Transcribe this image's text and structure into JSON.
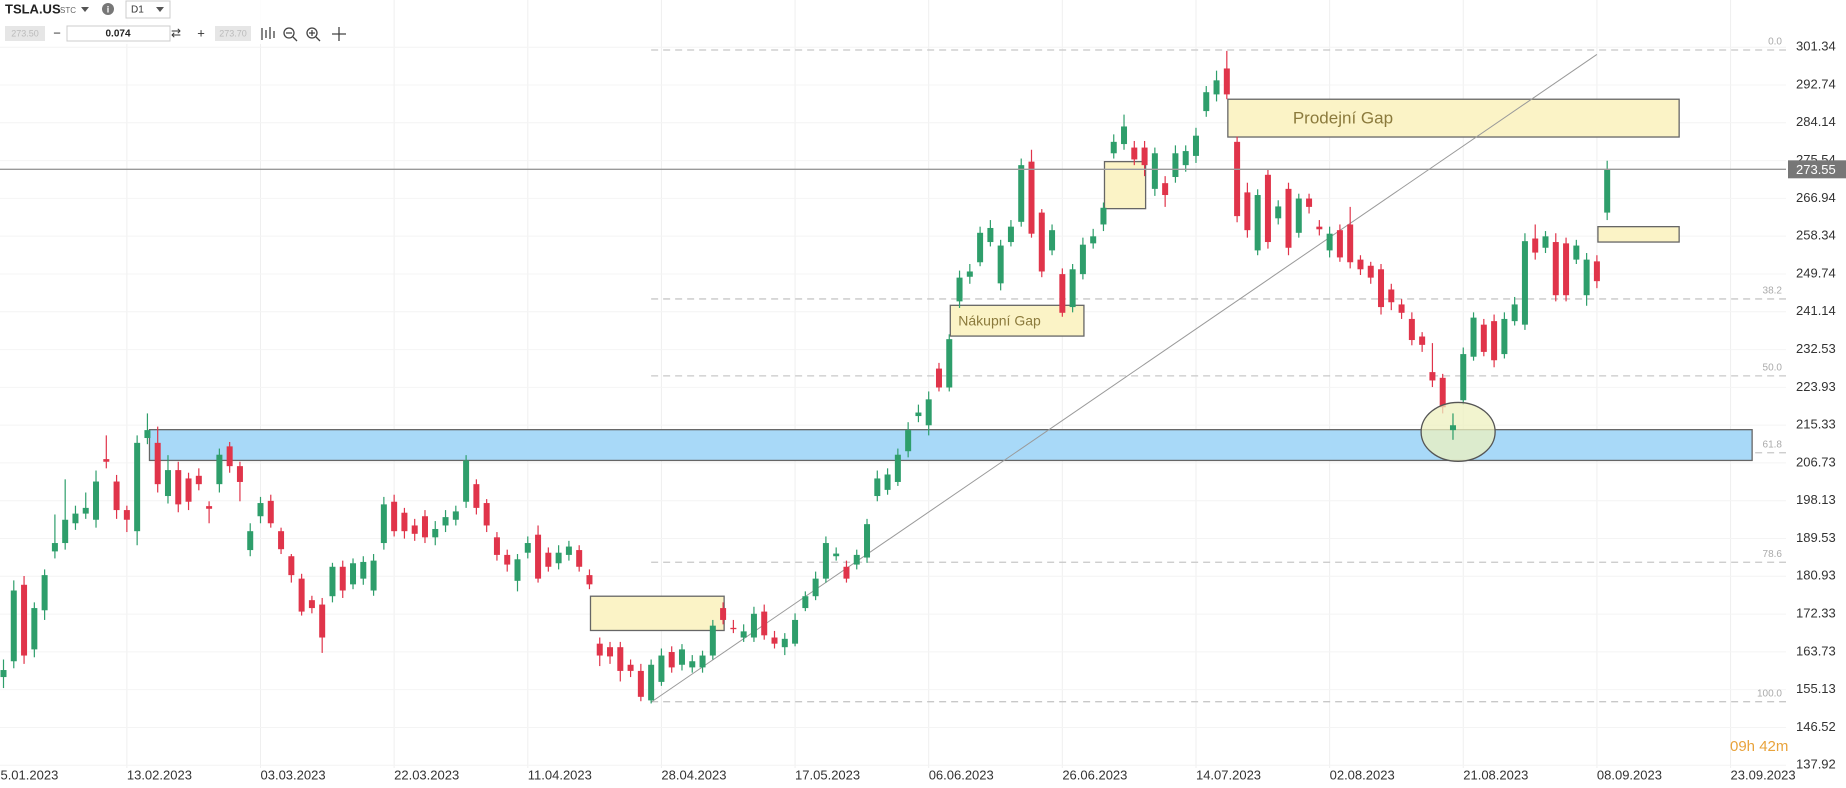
{
  "chart_data": {
    "type": "candlestick",
    "symbol": "TSLA.US",
    "symbol_type": "STC",
    "timeframe": "D1",
    "bid": "273.50",
    "volume": "0.074",
    "ask": "273.70",
    "current_price": 273.55,
    "countdown": "09h 42m",
    "up_color": "#2e9e6b",
    "down_color": "#e0344a",
    "grid": true,
    "ylim": [
      137.92,
      301.34
    ],
    "yticks": [
      301.34,
      292.74,
      284.14,
      275.54,
      266.94,
      258.34,
      249.74,
      241.14,
      232.53,
      223.93,
      215.33,
      206.73,
      198.13,
      189.53,
      180.93,
      172.33,
      163.73,
      155.13,
      146.52,
      137.92
    ],
    "xticks": [
      {
        "value": -1,
        "label": "25.01.2023"
      },
      {
        "value": 12,
        "label": "13.02.2023"
      },
      {
        "value": 25,
        "label": "03.03.2023"
      },
      {
        "value": 38,
        "label": "22.03.2023"
      },
      {
        "value": 51,
        "label": "11.04.2023"
      },
      {
        "value": 64,
        "label": "28.04.2023"
      },
      {
        "value": 77,
        "label": "17.05.2023"
      },
      {
        "value": 90,
        "label": "06.06.2023"
      },
      {
        "value": 103,
        "label": "26.06.2023"
      },
      {
        "value": 116,
        "label": "14.07.2023"
      },
      {
        "value": 129,
        "label": "02.08.2023"
      },
      {
        "value": 142,
        "label": "21.08.2023"
      },
      {
        "value": 155,
        "label": "08.09.2023"
      },
      {
        "value": 168,
        "label": "23.09.2023"
      }
    ],
    "open": [
      158.0,
      161.6,
      179.0,
      164.3,
      173.2,
      186.6,
      188.5,
      193.0,
      195.2,
      193.8,
      207.6,
      202.5,
      196.0,
      191.2,
      212.4,
      211.3,
      199.2,
      205.1,
      203.2,
      203.8,
      196.9,
      201.9,
      210.5,
      206.0,
      186.9,
      194.6,
      198.1,
      191.2,
      185.5,
      180.4,
      175.5,
      174.5,
      176.4,
      183.1,
      179.1,
      180.4,
      177.7,
      188.5,
      197.9,
      195.4,
      192.5,
      194.6,
      189.8,
      192.5,
      193.8,
      197.9,
      201.9,
      197.6,
      189.8,
      185.8,
      179.9,
      186.3,
      190.4,
      186.3,
      183.9,
      185.8,
      186.9,
      181.2,
      165.6,
      164.8,
      164.8,
      160.8,
      159.4,
      152.7,
      156.9,
      163.7,
      160.8,
      160.2,
      160.2,
      162.9,
      173.7,
      169.2,
      167.0,
      167.0,
      172.9,
      167.0,
      164.8,
      165.6,
      173.7,
      176.4,
      180.4,
      185.5,
      183.1,
      183.6,
      185.2,
      199.2,
      200.6,
      202.4,
      209.4,
      217.4,
      215.3,
      228.2,
      223.9,
      243.5,
      249.1,
      252.4,
      257.0,
      247.6,
      257.0,
      261.6,
      275.3,
      263.7,
      255.1,
      249.7,
      242.2,
      249.7,
      256.7,
      261.0,
      277.2,
      279.3,
      278.5,
      278.5,
      269.1,
      270.4,
      271.8,
      274.5,
      276.6,
      286.8,
      290.6,
      296.5,
      279.8,
      268.3,
      255.1,
      272.3,
      262.4,
      269.1,
      259.1,
      266.9,
      260.5,
      255.1,
      259.7,
      261.0,
      253.0,
      251.6,
      250.8,
      246.2,
      242.8,
      239.5,
      235.5,
      227.4,
      226.1,
      214.2,
      221.0,
      230.9,
      238.2,
      239.0,
      231.5,
      239.0,
      238.2,
      257.8,
      255.7,
      257.0,
      256.7,
      253.0,
      244.9,
      252.6,
      263.7
    ],
    "high": [
      162,
      180,
      181,
      175,
      182.5,
      195,
      203,
      197,
      200,
      205,
      213,
      204,
      197,
      213,
      218,
      215,
      208.5,
      207,
      204.5,
      205.5,
      198,
      210,
      211.5,
      207,
      193,
      199,
      199.5,
      192,
      186,
      181.5,
      176.5,
      176,
      184,
      184.5,
      185,
      185.5,
      186,
      199,
      199.5,
      196.5,
      194,
      196,
      193.5,
      196,
      197,
      208.5,
      203,
      198.5,
      191,
      187,
      186,
      190,
      192.5,
      187.5,
      188,
      189,
      188,
      182.5,
      167,
      166,
      166,
      162,
      161,
      162,
      164.5,
      165,
      165.5,
      163,
      164,
      171,
      175,
      171,
      170,
      174,
      174.5,
      168.5,
      168,
      172.5,
      177.5,
      182,
      190,
      187.5,
      184.5,
      187,
      194,
      205,
      205.5,
      210,
      216,
      220,
      223,
      229.5,
      236,
      250.5,
      252,
      260.5,
      262,
      257.5,
      262,
      276,
      278,
      264.5,
      261,
      251,
      252,
      258,
      260,
      266,
      281.5,
      286,
      280,
      280,
      278.5,
      272,
      279,
      279,
      283,
      292.5,
      296,
      300.5,
      281,
      270.5,
      269,
      273.5,
      266.5,
      270.5,
      268,
      268,
      262,
      260.5,
      261,
      265,
      254,
      252.5,
      252,
      247.5,
      244,
      241,
      236.5,
      234,
      227,
      218,
      233,
      241,
      239.5,
      240.5,
      241,
      244.5,
      259,
      261,
      259.5,
      259,
      258,
      257.5,
      254.5,
      254,
      275.5
    ],
    "low": [
      155.5,
      160,
      161,
      162.5,
      171,
      185,
      187,
      191.5,
      194,
      192,
      205.5,
      194,
      191,
      188,
      211,
      200,
      197.5,
      195.5,
      196,
      200.5,
      193,
      200,
      204.5,
      198,
      185.5,
      193,
      192,
      186,
      179.5,
      172,
      172.5,
      163.5,
      175,
      176,
      178,
      179,
      176.5,
      187,
      190,
      189.5,
      189,
      188.5,
      188,
      191,
      192.5,
      196.5,
      195,
      191,
      184.5,
      182,
      177.5,
      185,
      179.5,
      182,
      182.5,
      184.5,
      182,
      178,
      160.5,
      161,
      157,
      158,
      152.5,
      152,
      156,
      159,
      159.5,
      159,
      159,
      162,
      170,
      168,
      166,
      166,
      166.5,
      164.5,
      163,
      165,
      173,
      175.5,
      179.5,
      184.5,
      179.5,
      182.5,
      184,
      198,
      199.5,
      201.5,
      208,
      216,
      213,
      223,
      223,
      242,
      247.5,
      251.5,
      256,
      246,
      256,
      260.5,
      258,
      249,
      254,
      240,
      241,
      248.5,
      255.5,
      259.5,
      276,
      278,
      274.5,
      272,
      267.5,
      265,
      270.5,
      273,
      275,
      285.5,
      289,
      289.5,
      261.5,
      258,
      254,
      255.5,
      261,
      254,
      258,
      263.5,
      258.5,
      253.5,
      252.5,
      251,
      249.5,
      247.5,
      240.5,
      241.5,
      239.5,
      233.5,
      232,
      224,
      218,
      212,
      220,
      230,
      231,
      228.5,
      230.5,
      238,
      237,
      253,
      254.5,
      243.5,
      243.5,
      252,
      242.5,
      246.5,
      262
    ],
    "close": [
      159.6,
      177.7,
      162.9,
      173.7,
      181.2,
      188.5,
      193.8,
      195.2,
      196.5,
      202.5,
      207.0,
      196.0,
      193.8,
      211.3,
      214.2,
      201.9,
      205.1,
      197.3,
      197.9,
      201.9,
      196.3,
      208.6,
      206.0,
      202.4,
      191.2,
      197.6,
      193.0,
      187.1,
      181.2,
      172.9,
      173.7,
      167.0,
      183.1,
      177.7,
      183.9,
      184.2,
      184.5,
      197.3,
      191.2,
      191.2,
      190.6,
      189.8,
      191.7,
      194.4,
      195.7,
      207.3,
      196.5,
      192.5,
      185.8,
      183.6,
      184.8,
      188.5,
      180.4,
      183.1,
      186.3,
      187.7,
      183.1,
      179.1,
      162.9,
      162.7,
      159.4,
      159.4,
      153.5,
      160.8,
      162.9,
      160.2,
      164.3,
      161.6,
      162.9,
      169.7,
      171.0,
      168.9,
      168.4,
      172.4,
      167.5,
      165.6,
      166.7,
      171.0,
      176.4,
      180.4,
      188.5,
      186.1,
      180.4,
      185.8,
      192.8,
      203.2,
      204.1,
      208.6,
      214.2,
      218.2,
      221.2,
      223.9,
      234.9,
      248.9,
      250.3,
      259.1,
      260.2,
      256.2,
      260.5,
      274.5,
      258.9,
      250.3,
      259.7,
      240.9,
      250.8,
      256.4,
      258.3,
      264.8,
      279.8,
      283.3,
      275.8,
      274.5,
      277.2,
      267.7,
      277.2,
      277.7,
      281.2,
      291.1,
      293.8,
      290.6,
      262.9,
      259.7,
      267.7,
      257.0,
      265.1,
      255.7,
      266.9,
      265.0,
      259.9,
      258.9,
      253.5,
      252.4,
      250.8,
      248.9,
      242.2,
      243.3,
      240.9,
      234.7,
      233.6,
      225.5,
      219.4,
      215.3,
      231.5,
      239.8,
      232.0,
      230.1,
      239.5,
      242.8,
      257.2,
      254.6,
      258.3,
      244.9,
      244.9,
      256.2,
      253.0,
      248.1,
      273.6
    ],
    "fibonacci": {
      "high": 300.7,
      "low": 152.4,
      "start_index": 63,
      "levels": [
        {
          "value": 0,
          "label": "0.0"
        },
        38.2,
        {
          "value": 50,
          "label": "50.0"
        },
        61.8,
        78.6,
        {
          "value": 100,
          "label": "100.0"
        }
      ]
    },
    "zones": [
      {
        "x0": 14.2,
        "x1": 170.1,
        "top": 214.3,
        "bottom": 207.3,
        "color": "#a8d9f8"
      },
      {
        "label": "Prodejní Gap",
        "x0": 119.1,
        "x1": 163.0,
        "top": 289.5,
        "bottom": 280.9,
        "color": "#fbf3c6"
      },
      {
        "label": "Nákupní Gap",
        "x0": 92.1,
        "x1": 105.1,
        "top": 242.6,
        "bottom": 235.6,
        "color": "#fbf3c6"
      },
      {
        "x0": 107.1,
        "x1": 111.1,
        "top": 275.3,
        "bottom": 264.6,
        "color": "#fbf3c6"
      },
      {
        "x0": 57.1,
        "x1": 70.1,
        "top": 176.4,
        "bottom": 168.6,
        "color": "#fbf3c6"
      },
      {
        "x0": 155.1,
        "x1": 163.0,
        "top": 260.5,
        "bottom": 257.0,
        "color": "#fbf3c6"
      }
    ],
    "ellipse": {
      "x": 141.5,
      "y": 213.8,
      "rx": 3.6,
      "ry": 6.7,
      "color": "#eef0bf"
    },
    "trendline": {
      "x": [
        63,
        155
      ],
      "y": [
        152.3,
        299.7
      ]
    }
  }
}
